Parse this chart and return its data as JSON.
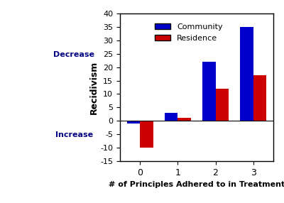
{
  "categories": [
    0,
    1,
    2,
    3
  ],
  "community": [
    -1,
    3,
    22,
    35
  ],
  "residence": [
    -10,
    1,
    12,
    17
  ],
  "community_color": "#0000cc",
  "residence_color": "#cc0000",
  "ylabel": "Recidivism",
  "xlabel": "# of Principles Adhered to in Treatment",
  "ylim": [
    -15,
    40
  ],
  "yticks": [
    -15,
    -10,
    -5,
    0,
    5,
    10,
    15,
    20,
    25,
    30,
    35,
    40
  ],
  "decrease_label": "Decrease",
  "increase_label": "Increase",
  "legend_community": "Community",
  "legend_residence": "Residence",
  "bar_width": 0.35,
  "background_color": "#ffffff",
  "border_color": "#000000"
}
